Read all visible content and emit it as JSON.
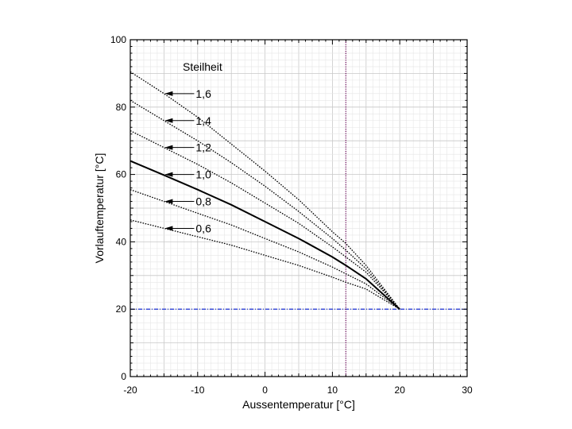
{
  "chart_data": {
    "type": "line",
    "title": "",
    "xlabel": "Aussentemperatur [°C]",
    "ylabel": "Vorlauftemperatur [°C]",
    "xlim": [
      -20,
      30
    ],
    "ylim": [
      0,
      100
    ],
    "xticks": [
      -20,
      -10,
      0,
      10,
      20,
      30
    ],
    "yticks": [
      0,
      20,
      40,
      60,
      80,
      100
    ],
    "grid": true,
    "legend_title": "Steilheit",
    "series": [
      {
        "name": "1,6",
        "label": "1,6",
        "style": "dotted",
        "x": [
          -20,
          -15,
          -10,
          -5,
          0,
          5,
          10,
          12,
          15,
          20
        ],
        "y": [
          90.5,
          84,
          77,
          69,
          61,
          52.5,
          43,
          39.5,
          33,
          20
        ]
      },
      {
        "name": "1,4",
        "label": "1,4",
        "style": "dotted",
        "x": [
          -20,
          -15,
          -10,
          -5,
          0,
          5,
          10,
          12,
          15,
          20
        ],
        "y": [
          82,
          76,
          70,
          63.5,
          56.5,
          49,
          41,
          37.5,
          32,
          20
        ]
      },
      {
        "name": "1,2",
        "label": "1,2",
        "style": "dotted",
        "x": [
          -20,
          -15,
          -10,
          -5,
          0,
          5,
          10,
          12,
          15,
          20
        ],
        "y": [
          73,
          68,
          63,
          57.5,
          51.5,
          45.5,
          38.5,
          35.5,
          31,
          20
        ]
      },
      {
        "name": "1,0",
        "label": "1,0",
        "style": "solid",
        "x": [
          -20,
          -15,
          -10,
          -5,
          0,
          5,
          10,
          12,
          15,
          20
        ],
        "y": [
          64,
          59.8,
          55.5,
          51,
          46,
          41,
          35.5,
          33,
          29,
          20
        ]
      },
      {
        "name": "0,8",
        "label": "0,8",
        "style": "dotted",
        "x": [
          -20,
          -15,
          -10,
          -5,
          0,
          5,
          10,
          12,
          15,
          20
        ],
        "y": [
          55.5,
          52,
          48.5,
          45,
          41,
          37,
          32.5,
          30.5,
          27.5,
          20
        ]
      },
      {
        "name": "0,6",
        "label": "0,6",
        "style": "dotted",
        "x": [
          -20,
          -15,
          -10,
          -5,
          0,
          5,
          10,
          12,
          15,
          20
        ],
        "y": [
          46.5,
          44,
          41.5,
          39,
          36,
          33,
          29.5,
          28,
          26,
          20
        ]
      }
    ],
    "reference_lines": [
      {
        "name": "horizontal-20",
        "orientation": "horizontal",
        "value": 20,
        "color": "#2b3fd6",
        "style": "dash-dot"
      },
      {
        "name": "vertical-12",
        "orientation": "vertical",
        "value": 12,
        "color": "#7a1f6a",
        "style": "dotted"
      }
    ],
    "annotations": [
      {
        "label": "1,6",
        "arrow_to": [
          -15,
          84
        ]
      },
      {
        "label": "1,4",
        "arrow_to": [
          -15,
          76
        ]
      },
      {
        "label": "1,2",
        "arrow_to": [
          -15,
          68
        ]
      },
      {
        "label": "1,0",
        "arrow_to": [
          -15,
          60
        ]
      },
      {
        "label": "0,8",
        "arrow_to": [
          -15,
          52
        ]
      },
      {
        "label": "0,6",
        "arrow_to": [
          -15,
          44
        ]
      }
    ]
  }
}
